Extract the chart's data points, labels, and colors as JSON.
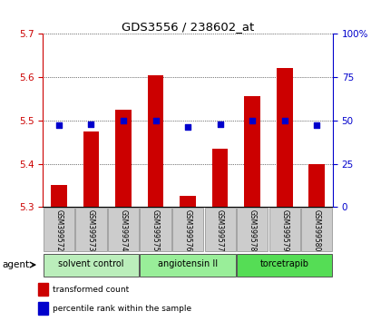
{
  "title": "GDS3556 / 238602_at",
  "samples": [
    "GSM399572",
    "GSM399573",
    "GSM399574",
    "GSM399575",
    "GSM399576",
    "GSM399577",
    "GSM399578",
    "GSM399579",
    "GSM399580"
  ],
  "bar_values": [
    5.35,
    5.475,
    5.525,
    5.605,
    5.325,
    5.435,
    5.555,
    5.62,
    5.4
  ],
  "bar_base": 5.3,
  "percentile_values": [
    47,
    48,
    50,
    50,
    46,
    48,
    50,
    50,
    47
  ],
  "bar_color": "#cc0000",
  "dot_color": "#0000cc",
  "ylim_left": [
    5.3,
    5.7
  ],
  "ylim_right": [
    0,
    100
  ],
  "yticks_left": [
    5.3,
    5.4,
    5.5,
    5.6,
    5.7
  ],
  "yticks_right": [
    0,
    25,
    50,
    75,
    100
  ],
  "ylabel_left_color": "#cc0000",
  "ylabel_right_color": "#0000cc",
  "groups": [
    {
      "label": "solvent control",
      "indices": [
        0,
        1,
        2
      ],
      "color": "#bbeebb"
    },
    {
      "label": "angiotensin II",
      "indices": [
        3,
        4,
        5
      ],
      "color": "#99ee99"
    },
    {
      "label": "torcetrapib",
      "indices": [
        6,
        7,
        8
      ],
      "color": "#55dd55"
    }
  ],
  "agent_label": "agent",
  "legend_items": [
    {
      "label": "transformed count",
      "color": "#cc0000"
    },
    {
      "label": "percentile rank within the sample",
      "color": "#0000cc"
    }
  ],
  "background_color": "#ffffff",
  "plot_bg_color": "#ffffff",
  "tick_bg_color": "#cccccc",
  "bar_width": 0.5,
  "dot_size": 20
}
